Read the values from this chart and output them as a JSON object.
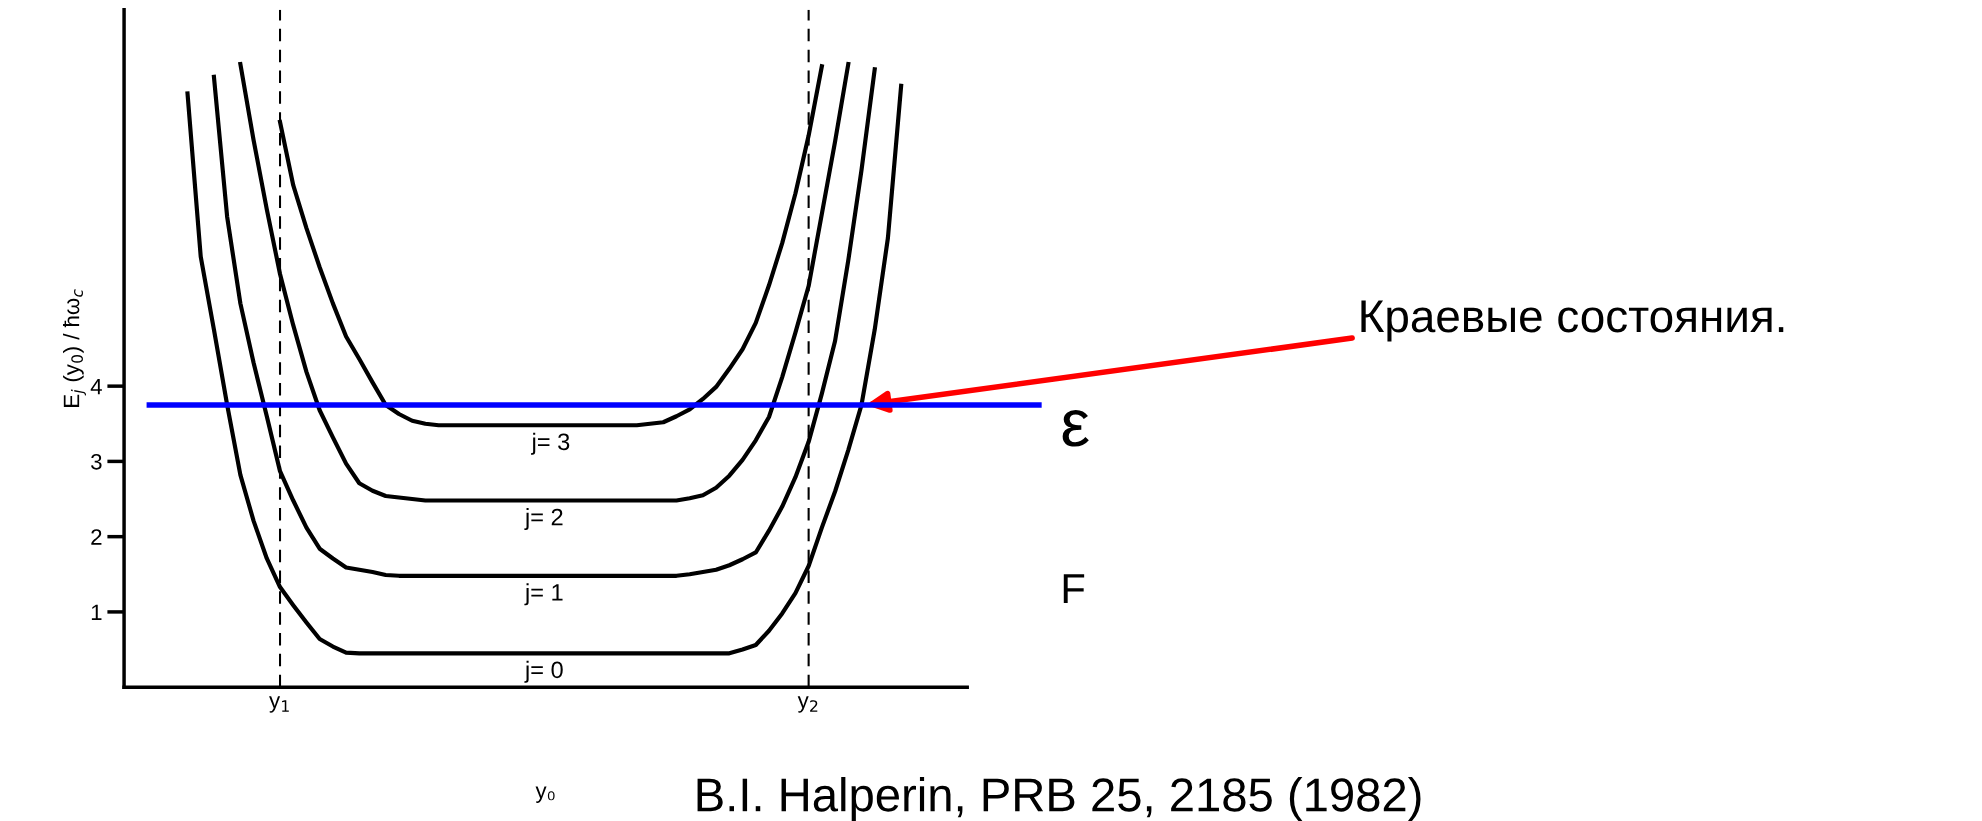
{
  "chart_data": {
    "type": "line",
    "xlabel": "y₀",
    "ylabel": "E$_{j}$ (y$_{0}$) / ħω$_{c}$",
    "categories": [
      null,
      null,
      null,
      null,
      null,
      null,
      null,
      null,
      "y$_{1}$",
      null,
      null,
      null,
      null,
      null,
      null,
      null,
      null,
      null,
      null,
      null,
      null,
      null,
      null,
      null,
      null,
      null,
      null,
      null,
      null,
      null,
      null,
      null,
      null,
      null,
      null,
      null,
      null,
      null,
      null,
      null,
      null,
      null,
      null,
      null,
      null,
      null,
      null,
      null,
      "y$_{2}$",
      null,
      null,
      null,
      null,
      null,
      null,
      null,
      null
    ],
    "ylim": [
      0,
      9
    ],
    "yticks": [
      1,
      2,
      3,
      4
    ],
    "grid": false,
    "legend": false,
    "marker": "none",
    "line_style": "solid",
    "series": [
      {
        "name": "j= 0",
        "color": "#000000",
        "values": [
          null,
          7.89,
          5.72,
          4.75,
          3.75,
          2.82,
          2.21,
          1.71,
          1.33,
          1.09,
          0.86,
          0.64,
          0.54,
          0.46,
          0.45,
          0.45,
          0.45,
          0.45,
          0.45,
          0.45,
          0.45,
          0.45,
          0.45,
          0.45,
          0.45,
          0.45,
          0.45,
          0.45,
          0.45,
          0.45,
          0.45,
          0.45,
          0.45,
          0.45,
          0.45,
          0.45,
          0.45,
          0.45,
          0.45,
          0.45,
          0.45,
          0.45,
          0.45,
          0.5,
          0.56,
          0.75,
          0.98,
          1.25,
          1.61,
          2.12,
          2.6,
          3.15,
          3.75,
          4.75,
          5.97,
          7.99,
          null
        ]
      },
      {
        "name": "j= 1",
        "color": "#000000",
        "values": [
          null,
          null,
          null,
          8.11,
          6.25,
          5.1,
          4.31,
          3.6,
          2.87,
          2.48,
          2.12,
          1.84,
          1.71,
          1.59,
          1.56,
          1.53,
          1.49,
          1.48,
          1.48,
          1.48,
          1.48,
          1.48,
          1.48,
          1.48,
          1.48,
          1.48,
          1.48,
          1.48,
          1.48,
          1.48,
          1.48,
          1.48,
          1.48,
          1.48,
          1.48,
          1.48,
          1.48,
          1.48,
          1.48,
          1.5,
          1.53,
          1.56,
          1.62,
          1.7,
          1.79,
          2.08,
          2.4,
          2.79,
          3.26,
          3.9,
          4.6,
          5.67,
          6.87,
          8.21,
          null,
          null,
          null
        ]
      },
      {
        "name": "j= 2",
        "color": "#000000",
        "values": [
          null,
          null,
          null,
          null,
          null,
          8.28,
          7.27,
          6.35,
          5.49,
          4.81,
          4.19,
          3.68,
          3.32,
          2.97,
          2.71,
          2.61,
          2.54,
          2.52,
          2.5,
          2.48,
          2.48,
          2.48,
          2.48,
          2.48,
          2.48,
          2.48,
          2.48,
          2.48,
          2.48,
          2.48,
          2.48,
          2.48,
          2.48,
          2.48,
          2.48,
          2.48,
          2.48,
          2.48,
          2.48,
          2.51,
          2.55,
          2.65,
          2.81,
          3.02,
          3.28,
          3.59,
          4.12,
          4.71,
          5.33,
          6.29,
          7.25,
          8.28,
          null,
          null,
          null,
          null,
          null
        ]
      },
      {
        "name": "j= 3",
        "color": "#000000",
        "values": [
          null,
          null,
          null,
          null,
          null,
          null,
          null,
          null,
          7.51,
          6.67,
          6.1,
          5.58,
          5.1,
          4.66,
          4.36,
          4.05,
          3.75,
          3.63,
          3.54,
          3.5,
          3.48,
          3.48,
          3.48,
          3.48,
          3.48,
          3.48,
          3.48,
          3.48,
          3.48,
          3.48,
          3.48,
          3.48,
          3.48,
          3.48,
          3.48,
          3.48,
          3.5,
          3.52,
          3.6,
          3.69,
          3.83,
          3.99,
          4.23,
          4.49,
          4.84,
          5.34,
          5.9,
          6.56,
          7.33,
          8.25,
          null,
          null,
          null,
          null,
          null,
          null,
          null
        ]
      }
    ],
    "ref_lines": [
      {
        "axis": "x",
        "value": "y$_{1}$",
        "color": "#000000",
        "line_style": "dashed"
      },
      {
        "axis": "x",
        "value": "y$_{2}$",
        "color": "#000000",
        "line_style": "dashed"
      },
      {
        "axis": "y",
        "value": 3.75,
        "color": "#0000ff",
        "line_style": "solid"
      }
    ],
    "annotations": [
      "ε",
      "F",
      "Краевые состояния.",
      "B.I. Halperin, PRB 25, 2185 (1982)"
    ]
  }
}
